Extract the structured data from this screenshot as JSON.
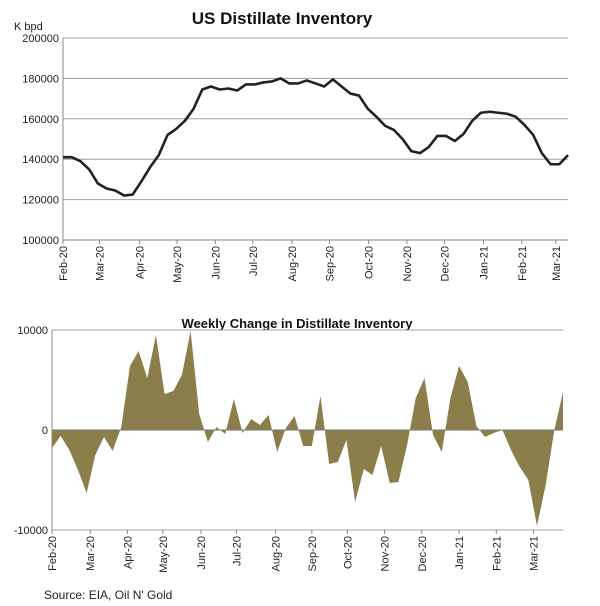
{
  "chart_data": [
    {
      "type": "line",
      "title": "US Distillate Inventory",
      "ylabel": "K bpd",
      "xlabel": "",
      "ylim": [
        100000,
        200000
      ],
      "yticks": [
        "100000",
        "120000",
        "140000",
        "160000",
        "180000",
        "200000"
      ],
      "ytick_values": [
        100000,
        120000,
        140000,
        160000,
        180000,
        200000
      ],
      "grid": true,
      "line_color": "#222222",
      "xtick_labels": [
        "Feb-20",
        "Mar-20",
        "Apr-20",
        "May-20",
        "Jun-20",
        "Jul-20",
        "Aug-20",
        "Sep-20",
        "Oct-20",
        "Nov-20",
        "Dec-20",
        "Jan-21",
        "Feb-21",
        "Mar-21"
      ],
      "xtick_week_index": [
        0,
        4.2,
        8.8,
        13.1,
        17.5,
        21.8,
        26.3,
        30.6,
        35.1,
        39.5,
        43.8,
        48.3,
        52.7,
        56.6
      ],
      "values": [
        141000,
        141000,
        139000,
        135000,
        128000,
        125500,
        124500,
        122000,
        122500,
        129000,
        136000,
        142000,
        152000,
        155000,
        159000,
        165000,
        174500,
        176000,
        174500,
        175000,
        174000,
        177000,
        177000,
        178000,
        178500,
        180000,
        177500,
        177500,
        179000,
        177500,
        176000,
        179500,
        176000,
        172500,
        171500,
        165000,
        161000,
        156500,
        154500,
        150000,
        144000,
        143000,
        146000,
        151500,
        151500,
        149000,
        152500,
        159000,
        163000,
        163500,
        163000,
        162500,
        161000,
        157000,
        152000,
        143000,
        137500,
        137500,
        142000
      ]
    },
    {
      "type": "area",
      "title": "Weekly Change in Distillate Inventory",
      "ylim": [
        -10000,
        10000
      ],
      "yticks": [
        "-10000",
        "0",
        "10000"
      ],
      "ytick_values": [
        -10000,
        0,
        10000
      ],
      "grid": true,
      "fill_color": "#8b7e4b",
      "xtick_labels": [
        "Feb-20",
        "Mar-20",
        "Apr-20",
        "May-20",
        "Jun-20",
        "Jul-20",
        "Aug-20",
        "Sep-20",
        "Oct-20",
        "Nov-20",
        "Dec-20",
        "Jan-21",
        "Feb-21",
        "Mar-21"
      ],
      "xtick_week_index": [
        0,
        4.4,
        8.7,
        12.8,
        17.2,
        21.3,
        25.8,
        30.0,
        34.1,
        38.4,
        42.7,
        47.0,
        51.3,
        55.6
      ],
      "values": [
        -1800,
        -600,
        -2000,
        -4000,
        -6300,
        -2500,
        -700,
        -2100,
        300,
        6400,
        7900,
        5200,
        9500,
        3600,
        3900,
        5500,
        9900,
        1600,
        -1200,
        300,
        -400,
        3100,
        -300,
        1100,
        500,
        1500,
        -2200,
        200,
        1400,
        -1600,
        -1600,
        3400,
        -3400,
        -3200,
        -1000,
        -7200,
        -3900,
        -4500,
        -1600,
        -5300,
        -5200,
        -1500,
        3200,
        5200,
        -500,
        -2200,
        3200,
        6400,
        4800,
        400,
        -700,
        -300,
        0,
        -2000,
        -3700,
        -5000,
        -9600,
        -5500,
        0,
        3800
      ]
    }
  ],
  "source": "Source: EIA, Oil N' Gold"
}
